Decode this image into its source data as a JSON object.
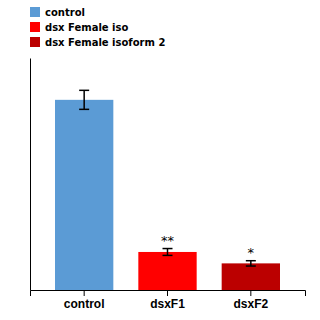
{
  "chart_data": {
    "type": "bar",
    "categories": [
      "control",
      "dsxF1",
      "dsxF2"
    ],
    "values": [
      1.0,
      0.2,
      0.14
    ],
    "errors": [
      0.05,
      0.018,
      0.014
    ],
    "colors": [
      "#5B9BD5",
      "#FF0000",
      "#BB0000"
    ],
    "annotations": [
      null,
      "**",
      "*"
    ],
    "legend_labels": [
      "control",
      "dsx Female iso",
      "dsx Female isoform 2"
    ],
    "legend": "top",
    "ylim": [
      0,
      1.22
    ],
    "tick_labels": "x"
  }
}
